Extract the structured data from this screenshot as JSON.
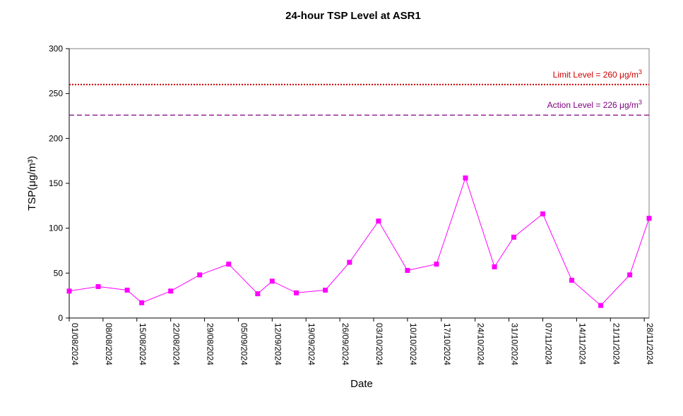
{
  "chart_data": {
    "type": "line",
    "title": "24-hour TSP Level at ASR1",
    "xlabel": "Date",
    "ylabel": "TSP(μg/m³)",
    "ylim": [
      0,
      300
    ],
    "yticks": [
      "0",
      "50",
      "100",
      "150",
      "200",
      "250",
      "300"
    ],
    "xlim": [
      "2024-08-01",
      "2024-11-29"
    ],
    "xticks": [
      "01/08/2024",
      "08/08/2024",
      "15/08/2024",
      "22/08/2024",
      "29/08/2024",
      "05/09/2024",
      "12/09/2024",
      "19/09/2024",
      "26/09/2024",
      "03/10/2024",
      "10/10/2024",
      "17/10/2024",
      "24/10/2024",
      "31/10/2024",
      "07/11/2024",
      "14/11/2024",
      "21/11/2024",
      "28/11/2024"
    ],
    "grid": false,
    "series": [
      {
        "color": "#ff00ff",
        "x": [
          "2024-08-01",
          "2024-08-07",
          "2024-08-13",
          "2024-08-16",
          "2024-08-22",
          "2024-08-28",
          "2024-09-03",
          "2024-09-09",
          "2024-09-12",
          "2024-09-17",
          "2024-09-23",
          "2024-09-28",
          "2024-10-04",
          "2024-10-10",
          "2024-10-16",
          "2024-10-22",
          "2024-10-28",
          "2024-11-01",
          "2024-11-07",
          "2024-11-13",
          "2024-11-19",
          "2024-11-25",
          "2024-11-29"
        ],
        "values": [
          30,
          35,
          31,
          17,
          30,
          48,
          60,
          27,
          41,
          28,
          31,
          62,
          108,
          53,
          60,
          156,
          57,
          90,
          116,
          42,
          14,
          48,
          111
        ]
      }
    ],
    "reference_lines": [
      {
        "name": "Limit Level",
        "label_text": "Limit Level  = 260 μg/m",
        "label_sup": "3",
        "value": 260,
        "color": "#cc0000",
        "style": "dotted"
      },
      {
        "name": "Action Level",
        "label_text": "Action Level  = 226 μg/m",
        "label_sup": "3",
        "value": 226,
        "color": "#800080",
        "style": "dashed"
      }
    ]
  }
}
